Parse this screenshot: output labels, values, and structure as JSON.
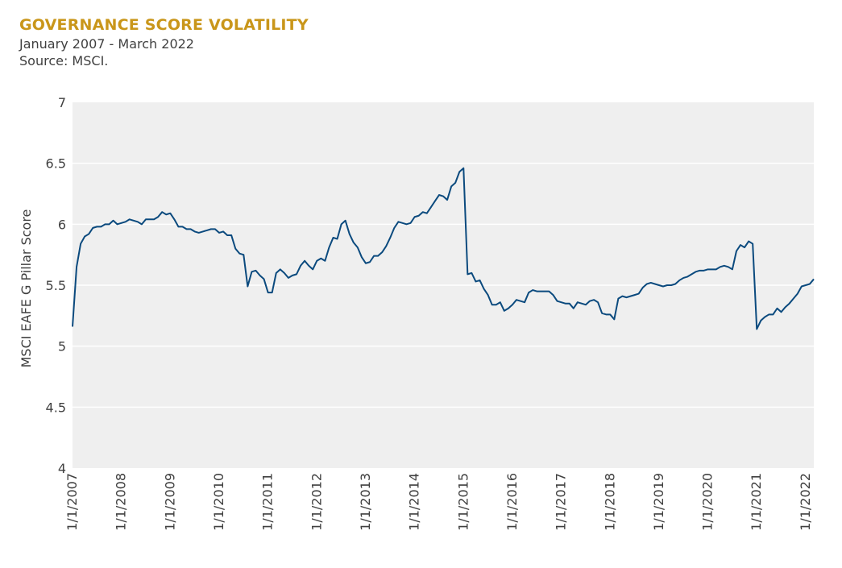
{
  "header": {
    "title": "GOVERNANCE SCORE VOLATILITY",
    "subtitle": "January 2007 - March 2022",
    "source": "Source: MSCI."
  },
  "colors": {
    "title": "#C9961A",
    "line": "#0B4A7E",
    "plot_background": "#EFEFEF",
    "gridline": "#FFFFFF",
    "text": "#404040"
  },
  "chart_data": {
    "type": "line",
    "xlabel": "",
    "ylabel": "MSCI EAFE G Pillar Score",
    "ylim": [
      4,
      7
    ],
    "yticks": [
      4,
      4.5,
      5,
      5.5,
      6,
      6.5,
      7
    ],
    "xlim": [
      "2007-01",
      "2022-03"
    ],
    "xticks": [
      "1/1/2007",
      "1/1/2008",
      "1/1/2009",
      "1/1/2010",
      "1/1/2011",
      "1/1/2012",
      "1/1/2013",
      "1/1/2014",
      "1/1/2015",
      "1/1/2016",
      "1/1/2017",
      "1/1/2018",
      "1/1/2019",
      "1/1/2020",
      "1/1/2021",
      "1/1/2022"
    ],
    "grid": "horizontal",
    "legend": "none",
    "series": [
      {
        "points": [
          [
            "2007-01",
            5.16
          ],
          [
            "2007-02",
            5.65
          ],
          [
            "2007-03",
            5.84
          ],
          [
            "2007-04",
            5.9
          ],
          [
            "2007-05",
            5.92
          ],
          [
            "2007-06",
            5.97
          ],
          [
            "2007-07",
            5.98
          ],
          [
            "2007-08",
            5.98
          ],
          [
            "2007-09",
            6.0
          ],
          [
            "2007-10",
            6.0
          ],
          [
            "2007-11",
            6.03
          ],
          [
            "2007-12",
            6.0
          ],
          [
            "2008-01",
            6.01
          ],
          [
            "2008-02",
            6.02
          ],
          [
            "2008-03",
            6.04
          ],
          [
            "2008-04",
            6.03
          ],
          [
            "2008-05",
            6.02
          ],
          [
            "2008-06",
            6.0
          ],
          [
            "2008-07",
            6.04
          ],
          [
            "2008-08",
            6.04
          ],
          [
            "2008-09",
            6.04
          ],
          [
            "2008-10",
            6.06
          ],
          [
            "2008-11",
            6.1
          ],
          [
            "2008-12",
            6.08
          ],
          [
            "2009-01",
            6.09
          ],
          [
            "2009-02",
            6.04
          ],
          [
            "2009-03",
            5.98
          ],
          [
            "2009-04",
            5.98
          ],
          [
            "2009-05",
            5.96
          ],
          [
            "2009-06",
            5.96
          ],
          [
            "2009-07",
            5.94
          ],
          [
            "2009-08",
            5.93
          ],
          [
            "2009-09",
            5.94
          ],
          [
            "2009-10",
            5.95
          ],
          [
            "2009-11",
            5.96
          ],
          [
            "2009-12",
            5.96
          ],
          [
            "2010-01",
            5.93
          ],
          [
            "2010-02",
            5.94
          ],
          [
            "2010-03",
            5.91
          ],
          [
            "2010-04",
            5.91
          ],
          [
            "2010-05",
            5.8
          ],
          [
            "2010-06",
            5.76
          ],
          [
            "2010-07",
            5.75
          ],
          [
            "2010-08",
            5.49
          ],
          [
            "2010-09",
            5.61
          ],
          [
            "2010-10",
            5.62
          ],
          [
            "2010-11",
            5.58
          ],
          [
            "2010-12",
            5.55
          ],
          [
            "2011-01",
            5.44
          ],
          [
            "2011-02",
            5.44
          ],
          [
            "2011-03",
            5.6
          ],
          [
            "2011-04",
            5.63
          ],
          [
            "2011-05",
            5.6
          ],
          [
            "2011-06",
            5.56
          ],
          [
            "2011-07",
            5.58
          ],
          [
            "2011-08",
            5.59
          ],
          [
            "2011-09",
            5.66
          ],
          [
            "2011-10",
            5.7
          ],
          [
            "2011-11",
            5.66
          ],
          [
            "2011-12",
            5.63
          ],
          [
            "2012-01",
            5.7
          ],
          [
            "2012-02",
            5.72
          ],
          [
            "2012-03",
            5.7
          ],
          [
            "2012-04",
            5.81
          ],
          [
            "2012-05",
            5.89
          ],
          [
            "2012-06",
            5.88
          ],
          [
            "2012-07",
            6.0
          ],
          [
            "2012-08",
            6.03
          ],
          [
            "2012-09",
            5.92
          ],
          [
            "2012-10",
            5.85
          ],
          [
            "2012-11",
            5.81
          ],
          [
            "2012-12",
            5.73
          ],
          [
            "2013-01",
            5.68
          ],
          [
            "2013-02",
            5.69
          ],
          [
            "2013-03",
            5.74
          ],
          [
            "2013-04",
            5.74
          ],
          [
            "2013-05",
            5.77
          ],
          [
            "2013-06",
            5.82
          ],
          [
            "2013-07",
            5.89
          ],
          [
            "2013-08",
            5.97
          ],
          [
            "2013-09",
            6.02
          ],
          [
            "2013-10",
            6.01
          ],
          [
            "2013-11",
            6.0
          ],
          [
            "2013-12",
            6.01
          ],
          [
            "2014-01",
            6.06
          ],
          [
            "2014-02",
            6.07
          ],
          [
            "2014-03",
            6.1
          ],
          [
            "2014-04",
            6.09
          ],
          [
            "2014-05",
            6.14
          ],
          [
            "2014-06",
            6.19
          ],
          [
            "2014-07",
            6.24
          ],
          [
            "2014-08",
            6.23
          ],
          [
            "2014-09",
            6.2
          ],
          [
            "2014-10",
            6.31
          ],
          [
            "2014-11",
            6.34
          ],
          [
            "2014-12",
            6.43
          ],
          [
            "2015-01",
            6.46
          ],
          [
            "2015-02",
            5.59
          ],
          [
            "2015-03",
            5.6
          ],
          [
            "2015-04",
            5.53
          ],
          [
            "2015-05",
            5.54
          ],
          [
            "2015-06",
            5.47
          ],
          [
            "2015-07",
            5.42
          ],
          [
            "2015-08",
            5.34
          ],
          [
            "2015-09",
            5.34
          ],
          [
            "2015-10",
            5.36
          ],
          [
            "2015-11",
            5.29
          ],
          [
            "2015-12",
            5.31
          ],
          [
            "2016-01",
            5.34
          ],
          [
            "2016-02",
            5.38
          ],
          [
            "2016-03",
            5.37
          ],
          [
            "2016-04",
            5.36
          ],
          [
            "2016-05",
            5.44
          ],
          [
            "2016-06",
            5.46
          ],
          [
            "2016-07",
            5.45
          ],
          [
            "2016-08",
            5.45
          ],
          [
            "2016-09",
            5.45
          ],
          [
            "2016-10",
            5.45
          ],
          [
            "2016-11",
            5.42
          ],
          [
            "2016-12",
            5.37
          ],
          [
            "2017-01",
            5.36
          ],
          [
            "2017-02",
            5.35
          ],
          [
            "2017-03",
            5.35
          ],
          [
            "2017-04",
            5.31
          ],
          [
            "2017-05",
            5.36
          ],
          [
            "2017-06",
            5.35
          ],
          [
            "2017-07",
            5.34
          ],
          [
            "2017-08",
            5.37
          ],
          [
            "2017-09",
            5.38
          ],
          [
            "2017-10",
            5.36
          ],
          [
            "2017-11",
            5.27
          ],
          [
            "2017-12",
            5.26
          ],
          [
            "2018-01",
            5.26
          ],
          [
            "2018-02",
            5.22
          ],
          [
            "2018-03",
            5.39
          ],
          [
            "2018-04",
            5.41
          ],
          [
            "2018-05",
            5.4
          ],
          [
            "2018-06",
            5.41
          ],
          [
            "2018-07",
            5.42
          ],
          [
            "2018-08",
            5.43
          ],
          [
            "2018-09",
            5.48
          ],
          [
            "2018-10",
            5.51
          ],
          [
            "2018-11",
            5.52
          ],
          [
            "2018-12",
            5.51
          ],
          [
            "2019-01",
            5.5
          ],
          [
            "2019-02",
            5.49
          ],
          [
            "2019-03",
            5.5
          ],
          [
            "2019-04",
            5.5
          ],
          [
            "2019-05",
            5.51
          ],
          [
            "2019-06",
            5.54
          ],
          [
            "2019-07",
            5.56
          ],
          [
            "2019-08",
            5.57
          ],
          [
            "2019-09",
            5.59
          ],
          [
            "2019-10",
            5.61
          ],
          [
            "2019-11",
            5.62
          ],
          [
            "2019-12",
            5.62
          ],
          [
            "2020-01",
            5.63
          ],
          [
            "2020-02",
            5.63
          ],
          [
            "2020-03",
            5.63
          ],
          [
            "2020-04",
            5.65
          ],
          [
            "2020-05",
            5.66
          ],
          [
            "2020-06",
            5.65
          ],
          [
            "2020-07",
            5.63
          ],
          [
            "2020-08",
            5.78
          ],
          [
            "2020-09",
            5.83
          ],
          [
            "2020-10",
            5.81
          ],
          [
            "2020-11",
            5.86
          ],
          [
            "2020-12",
            5.84
          ],
          [
            "2021-01",
            5.14
          ],
          [
            "2021-02",
            5.21
          ],
          [
            "2021-03",
            5.24
          ],
          [
            "2021-04",
            5.26
          ],
          [
            "2021-05",
            5.26
          ],
          [
            "2021-06",
            5.31
          ],
          [
            "2021-07",
            5.28
          ],
          [
            "2021-08",
            5.32
          ],
          [
            "2021-09",
            5.35
          ],
          [
            "2021-10",
            5.39
          ],
          [
            "2021-11",
            5.43
          ],
          [
            "2021-12",
            5.49
          ],
          [
            "2022-01",
            5.5
          ],
          [
            "2022-02",
            5.51
          ],
          [
            "2022-03",
            5.55
          ]
        ]
      }
    ]
  }
}
